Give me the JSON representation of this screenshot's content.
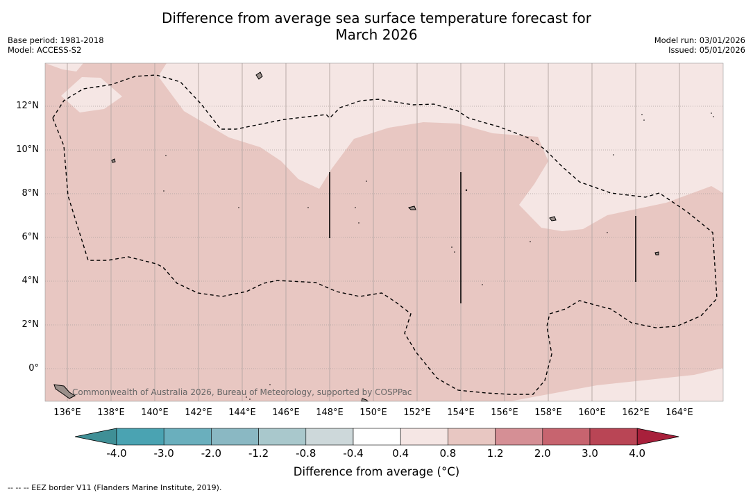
{
  "title_line1": "Difference from average sea surface temperature forecast for",
  "title_line2": "March 2026",
  "base_period": "Base period: 1981-2018",
  "model": "Model: ACCESS-S2",
  "model_run": "Model run: 03/01/2026",
  "issued": "Issued: 05/01/2026",
  "credit": "Commonwealth of Australia 2026, Bureau of Meteorology, supported by COSPPac",
  "x_ticks": [
    "136°E",
    "138°E",
    "140°E",
    "142°E",
    "144°E",
    "146°E",
    "148°E",
    "150°E",
    "152°E",
    "154°E",
    "156°E",
    "158°E",
    "160°E",
    "162°E",
    "164°E"
  ],
  "y_ticks": [
    "12°N",
    "10°N",
    "8°N",
    "6°N",
    "4°N",
    "2°N",
    "0°"
  ],
  "colorbar": {
    "labels": [
      "-4.0",
      "-3.0",
      "-2.0",
      "-1.2",
      "-0.8",
      "-0.4",
      "0.4",
      "0.8",
      "1.2",
      "2.0",
      "3.0",
      "4.0"
    ],
    "colors": [
      "#3f8f96",
      "#4aa3b2",
      "#6aafbd",
      "#8ab8c3",
      "#a9c8cc",
      "#cdd8da",
      "#ffffff",
      "#f5e6e4",
      "#e8c7c2",
      "#d58f95",
      "#c7646f",
      "#b94555",
      "#a8203b"
    ],
    "title": "Difference from average (°C)"
  },
  "footnote": "--  --  -- EEZ border V11 (Flanders Marine Institute, 2019).",
  "colors": {
    "warm_light": "#f5e6e4",
    "warm_mid": "#e8c7c2"
  }
}
